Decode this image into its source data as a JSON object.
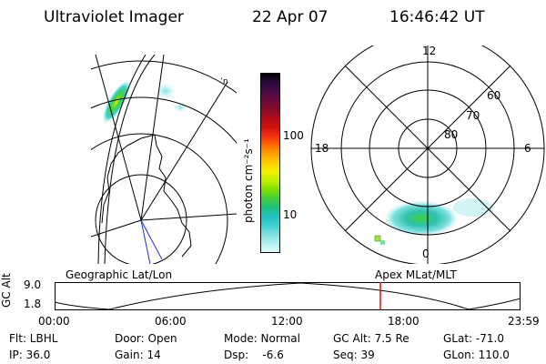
{
  "header": {
    "instrument": "Ultraviolet Imager",
    "date": "22 Apr 07",
    "time": "16:46:42 UT"
  },
  "colorbar": {
    "label": "photon cm⁻²s⁻¹",
    "ticks": [
      "100",
      "10"
    ],
    "colors": [
      "#000000",
      "#2a0a3a",
      "#4a0a4a",
      "#6a0a3a",
      "#8a0a2a",
      "#b00a1a",
      "#d01010",
      "#f03010",
      "#ff6a00",
      "#ffa000",
      "#ffd000",
      "#f0f000",
      "#c0f000",
      "#80e000",
      "#40d040",
      "#20c080",
      "#20c0c0",
      "#40d0d0",
      "#80e0e0",
      "#b0f0f0",
      "#e0f8f8"
    ]
  },
  "polar_plot": {
    "mlt_labels": [
      "12",
      "18",
      "6",
      "0"
    ],
    "lat_labels": [
      "60",
      "70",
      "80"
    ]
  },
  "timeline": {
    "ylabel": "GC Alt",
    "ytick_top": "9.0",
    "ytick_bottom": "1.8",
    "left_title": "Geographic Lat/Lon",
    "right_title": "Apex MLat/MLT",
    "xticks": [
      "00:00",
      "06:00",
      "12:00",
      "18:00",
      "23:59"
    ],
    "marker_time_hours": 16.78,
    "marker_color": "#e01010"
  },
  "status": {
    "row1": [
      {
        "key": "flt",
        "text": "Flt: LBHL"
      },
      {
        "key": "door",
        "text": "Door: Open"
      },
      {
        "key": "mode",
        "text": "Mode: Normal"
      },
      {
        "key": "gcalt",
        "text": "GC Alt: 7.5 Re"
      },
      {
        "key": "glat",
        "text": "GLat: -71.0"
      }
    ],
    "row2": [
      {
        "key": "ip",
        "text": "IP: 36.0"
      },
      {
        "key": "gain",
        "text": "Gain: 14"
      },
      {
        "key": "dsp",
        "text": "Dsp:    -6.6"
      },
      {
        "key": "seq",
        "text": "Seq: 39"
      },
      {
        "key": "glon",
        "text": "GLon: 110.0"
      }
    ]
  }
}
